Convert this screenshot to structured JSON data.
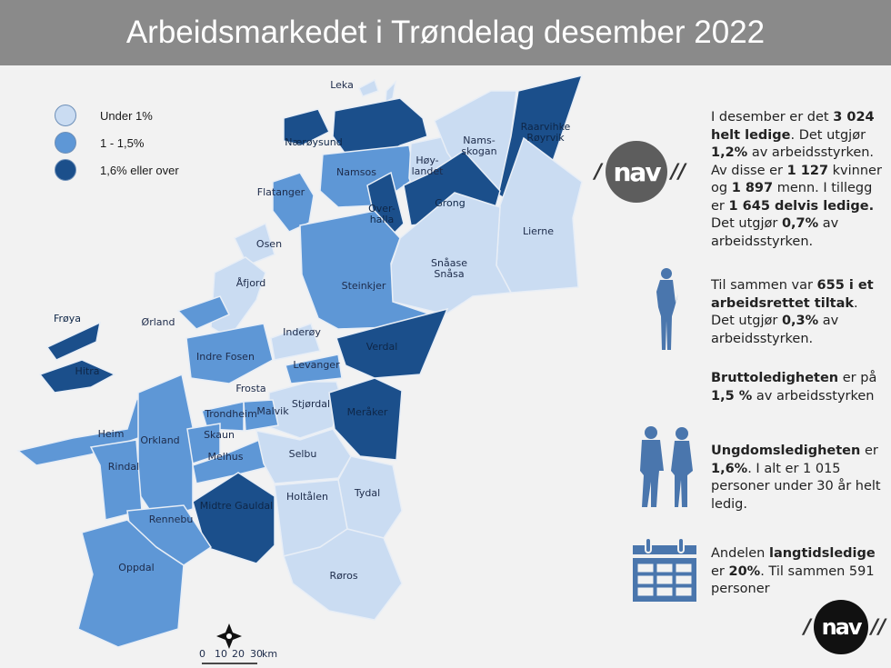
{
  "title": "Arbeidsmarkedet i Trøndelag desember 2022",
  "colors": {
    "header": "#8a8a8a",
    "under_1": "#cadcf2",
    "1_to_1_5": "#5e97d6",
    "over_1_6": "#1b4f8b",
    "icon": "#4a76ad"
  },
  "legend": [
    {
      "label": "Under 1%",
      "color": "#cadcf2"
    },
    {
      "label": "1 - 1,5%",
      "color": "#5e97d6"
    },
    {
      "label": "1,6% eller over",
      "color": "#1b4f8b"
    }
  ],
  "municipalities": [
    {
      "name": "Leka",
      "category": "under_1"
    },
    {
      "name": "Nærøysund",
      "category": "over_1_6"
    },
    {
      "name": "Namsos",
      "category": "1_to_1_5"
    },
    {
      "name": "Høy-\nlandet",
      "category": "under_1"
    },
    {
      "name": "Nams-\nskogan",
      "category": "under_1"
    },
    {
      "name": "Raarvihke\nRøyrvik",
      "category": "over_1_6"
    },
    {
      "name": "Flatanger",
      "category": "1_to_1_5"
    },
    {
      "name": "Over-\nhalla",
      "category": "over_1_6"
    },
    {
      "name": "Grong",
      "category": "over_1_6"
    },
    {
      "name": "Lierne",
      "category": "under_1"
    },
    {
      "name": "Osen",
      "category": "under_1"
    },
    {
      "name": "Snåase\nSnåsa",
      "category": "under_1"
    },
    {
      "name": "Åfjord",
      "category": "under_1"
    },
    {
      "name": "Steinkjer",
      "category": "1_to_1_5"
    },
    {
      "name": "Frøya",
      "category": "over_1_6"
    },
    {
      "name": "Ørland",
      "category": "1_to_1_5"
    },
    {
      "name": "Inderøy",
      "category": "under_1"
    },
    {
      "name": "Hitra",
      "category": "over_1_6"
    },
    {
      "name": "Indre Fosen",
      "category": "1_to_1_5"
    },
    {
      "name": "Verdal",
      "category": "over_1_6"
    },
    {
      "name": "Levanger",
      "category": "1_to_1_5"
    },
    {
      "name": "Frosta",
      "category": "under_1"
    },
    {
      "name": "Stjørdal",
      "category": "under_1"
    },
    {
      "name": "Trondheim",
      "category": "1_to_1_5"
    },
    {
      "name": "Malvik",
      "category": "1_to_1_5"
    },
    {
      "name": "Meråker",
      "category": "over_1_6"
    },
    {
      "name": "Heim",
      "category": "1_to_1_5"
    },
    {
      "name": "Orkland",
      "category": "1_to_1_5"
    },
    {
      "name": "Skaun",
      "category": "1_to_1_5"
    },
    {
      "name": "Melhus",
      "category": "1_to_1_5"
    },
    {
      "name": "Selbu",
      "category": "under_1"
    },
    {
      "name": "Rindal",
      "category": "1_to_1_5"
    },
    {
      "name": "Tydal",
      "category": "under_1"
    },
    {
      "name": "Midtre Gauldal",
      "category": "over_1_6"
    },
    {
      "name": "Rennebu",
      "category": "1_to_1_5"
    },
    {
      "name": "Holtålen",
      "category": "under_1"
    },
    {
      "name": "Oppdal",
      "category": "1_to_1_5"
    },
    {
      "name": "Røros",
      "category": "under_1"
    }
  ],
  "scale_bar": {
    "ticks": [
      "0",
      "10",
      "20",
      "30"
    ],
    "unit": "km",
    "north": "N"
  },
  "logo_text": "nav",
  "facts": [
    {
      "icon": "nav-logo",
      "parts": [
        {
          "t": "I desember er det ",
          "b": false
        },
        {
          "t": "3 024 helt ledige",
          "b": true
        },
        {
          "t": ". Det utgjør ",
          "b": false
        },
        {
          "t": "1,2%",
          "b": true
        },
        {
          "t": " av arbeidsstyrken. Av disse er ",
          "b": false
        },
        {
          "t": "1 127",
          "b": true
        },
        {
          "t": " kvinner og ",
          "b": false
        },
        {
          "t": "1 897",
          "b": true
        },
        {
          "t": " menn. I tillegg er ",
          "b": false
        },
        {
          "t": "1 645 delvis ledige.",
          "b": true
        },
        {
          "t": " Det utgjør ",
          "b": false
        },
        {
          "t": "0,7%",
          "b": true
        },
        {
          "t": " av arbeidsstyrken.",
          "b": false
        }
      ]
    },
    {
      "icon": "woman-silhouette",
      "parts": [
        {
          "t": "Til sammen var ",
          "b": false
        },
        {
          "t": "655 i et arbeidsrettet tiltak",
          "b": true
        },
        {
          "t": ". Det utgjør ",
          "b": false
        },
        {
          "t": "0,3%",
          "b": true
        },
        {
          "t": " av arbeidsstyrken.",
          "b": false
        }
      ]
    },
    {
      "icon": "none",
      "parts": [
        {
          "t": "Bruttoledigheten",
          "b": true
        },
        {
          "t": " er på ",
          "b": false
        },
        {
          "t": "1,5 %",
          "b": true
        },
        {
          "t": " av arbeidsstyrken",
          "b": false
        }
      ]
    },
    {
      "icon": "couple-silhouette",
      "parts": [
        {
          "t": "Ungdomsledigheten",
          "b": true
        },
        {
          "t": " er ",
          "b": false
        },
        {
          "t": "1,6%",
          "b": true
        },
        {
          "t": ". I alt er 1 015 personer under 30 år helt ledig.",
          "b": false
        }
      ]
    },
    {
      "icon": "calendar",
      "parts": [
        {
          "t": "Andelen ",
          "b": false
        },
        {
          "t": "langtidsledige",
          "b": true
        },
        {
          "t": " er ",
          "b": false
        },
        {
          "t": "20%",
          "b": true
        },
        {
          "t": ". Til sammen 591 personer",
          "b": false
        }
      ]
    }
  ]
}
